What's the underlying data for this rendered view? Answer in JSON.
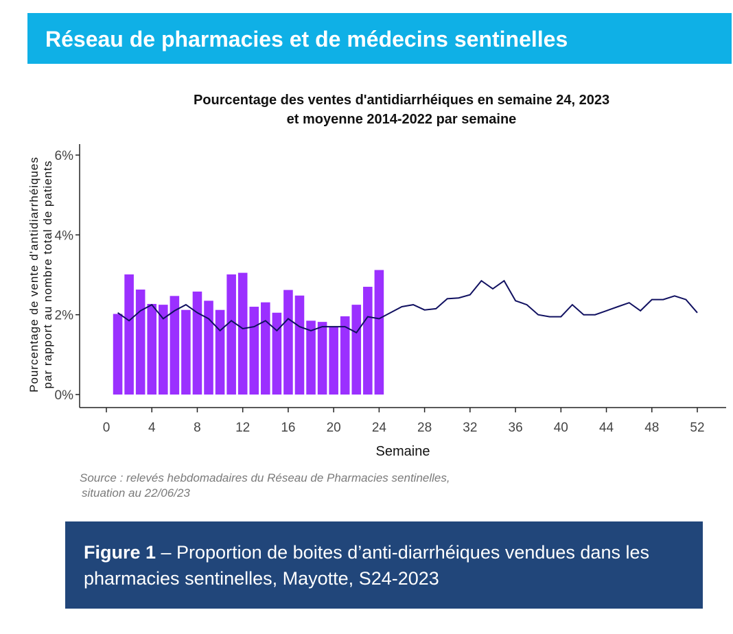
{
  "header": {
    "title": "Réseau de pharmacies et de médecins sentinelles"
  },
  "chart_data": {
    "type": "bar",
    "title_line1": "Pourcentage des ventes d'antidiarrhéiques en semaine 24, 2023",
    "title_line2": "et moyenne 2014-2022 par semaine",
    "xlabel": "Semaine",
    "ylabel_line1": "Pourcentage de vente d'antidiarrhéiques",
    "ylabel_line2": "par rapport au nombre total de patients",
    "xlim": [
      0,
      52
    ],
    "ylim": [
      0,
      6
    ],
    "x_ticks": [
      0,
      4,
      8,
      12,
      16,
      20,
      24,
      28,
      32,
      36,
      40,
      44,
      48,
      52
    ],
    "y_ticks": [
      0,
      2,
      4,
      6
    ],
    "y_tick_labels": [
      "0%",
      "2%",
      "4%",
      "6%"
    ],
    "grid": false,
    "bar_color": "#9b30ff",
    "line_color": "#101060",
    "series": [
      {
        "kind": "bar",
        "x": [
          1,
          2,
          3,
          4,
          5,
          6,
          7,
          8,
          9,
          10,
          11,
          12,
          13,
          14,
          15,
          16,
          17,
          18,
          19,
          20,
          21,
          22,
          23,
          24
        ],
        "values": [
          2.02,
          3.01,
          2.63,
          2.27,
          2.25,
          2.47,
          2.12,
          2.58,
          2.35,
          2.12,
          3.01,
          3.05,
          2.2,
          2.31,
          2.05,
          2.62,
          2.48,
          1.85,
          1.82,
          1.71,
          1.96,
          2.25,
          2.7,
          3.12
        ]
      },
      {
        "kind": "line",
        "x": [
          1,
          2,
          3,
          4,
          5,
          6,
          7,
          8,
          9,
          10,
          11,
          12,
          13,
          14,
          15,
          16,
          17,
          18,
          19,
          20,
          21,
          22,
          23,
          24,
          25,
          26,
          27,
          28,
          29,
          30,
          31,
          32,
          33,
          34,
          35,
          36,
          37,
          38,
          39,
          40,
          41,
          42,
          43,
          44,
          45,
          46,
          47,
          48,
          49,
          50,
          51,
          52
        ],
        "values": [
          2.05,
          1.85,
          2.1,
          2.25,
          1.9,
          2.1,
          2.25,
          2.05,
          1.9,
          1.6,
          1.85,
          1.65,
          1.7,
          1.85,
          1.6,
          1.9,
          1.7,
          1.6,
          1.7,
          1.7,
          1.7,
          1.55,
          1.95,
          1.9,
          2.05,
          2.2,
          2.25,
          2.12,
          2.15,
          2.4,
          2.42,
          2.5,
          2.85,
          2.65,
          2.85,
          2.35,
          2.25,
          2.0,
          1.95,
          1.95,
          2.25,
          2.0,
          2.0,
          2.1,
          2.2,
          2.3,
          2.1,
          2.38,
          2.38,
          2.47,
          2.38,
          2.05
        ]
      }
    ]
  },
  "source": {
    "line1": "Source :  relevés hebdomadaires du Réseau de Pharmacies sentinelles,",
    "line2": "situation au  22/06/23"
  },
  "figure": {
    "label": "Figure 1",
    "text": " –  Proportion de boites d’anti-diarrhéiques vendues dans les pharmacies sentinelles, Mayotte, S24-2023"
  }
}
